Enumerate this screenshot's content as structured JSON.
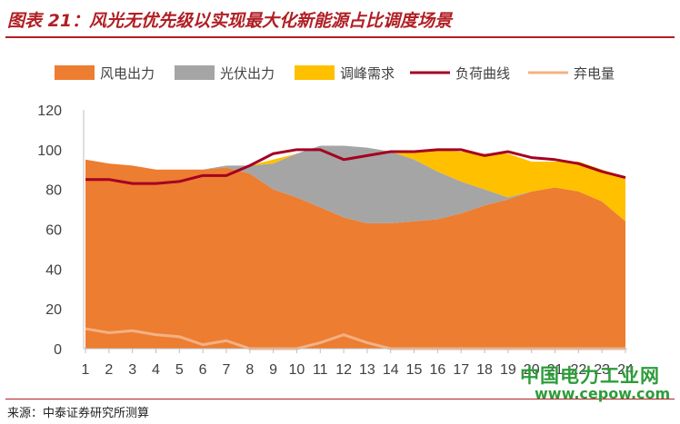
{
  "header": {
    "title": "图表 21：风光无优先级以实现最大化新能源占比调度场景"
  },
  "footer": {
    "source": "来源：中泰证券研究所测算"
  },
  "watermark": {
    "line1": "中国电力工业网",
    "line2": "www.cepow.com"
  },
  "chart_data": {
    "type": "area",
    "x": [
      1,
      2,
      3,
      4,
      5,
      6,
      7,
      8,
      9,
      10,
      11,
      12,
      13,
      14,
      15,
      16,
      17,
      18,
      19,
      20,
      21,
      22,
      23,
      24
    ],
    "ylim": [
      0,
      120
    ],
    "yticks": [
      0,
      20,
      40,
      60,
      80,
      100,
      120
    ],
    "grid": false,
    "legend_position": "top",
    "series": [
      {
        "name": "风电出力",
        "kind": "area",
        "color": "#ed7d31",
        "values": [
          95,
          93,
          92,
          90,
          90,
          90,
          91,
          88,
          80,
          76,
          71,
          66,
          63,
          63,
          64,
          65,
          68,
          72,
          75,
          79,
          81,
          79,
          74,
          64
        ]
      },
      {
        "name": "光伏出力",
        "kind": "area",
        "color": "#a5a5a5",
        "values": [
          0,
          0,
          0,
          0,
          0,
          0,
          1,
          4,
          13,
          22,
          31,
          36,
          38,
          36,
          31,
          24,
          16,
          8,
          1,
          0,
          0,
          0,
          0,
          0
        ]
      },
      {
        "name": "调峰需求",
        "kind": "area",
        "color": "#ffc000",
        "values": [
          0,
          0,
          0,
          0,
          0,
          0,
          0,
          0,
          2,
          0,
          0,
          0,
          0,
          0,
          4,
          11,
          15,
          18,
          22,
          15,
          13,
          15,
          16,
          22
        ]
      },
      {
        "name": "负荷曲线",
        "kind": "line",
        "color": "#a50021",
        "values": [
          85,
          85,
          83,
          83,
          84,
          87,
          87,
          92,
          98,
          100,
          100,
          95,
          97,
          99,
          99,
          100,
          100,
          97,
          99,
          96,
          95,
          93,
          89,
          86
        ]
      },
      {
        "name": "弃电量",
        "kind": "line",
        "color": "#f4b183",
        "values": [
          10,
          8,
          9,
          7,
          6,
          2,
          4,
          0,
          0,
          0,
          3,
          7,
          3,
          0,
          0,
          0,
          0,
          0,
          0,
          0,
          0,
          0,
          0,
          0
        ]
      }
    ]
  }
}
